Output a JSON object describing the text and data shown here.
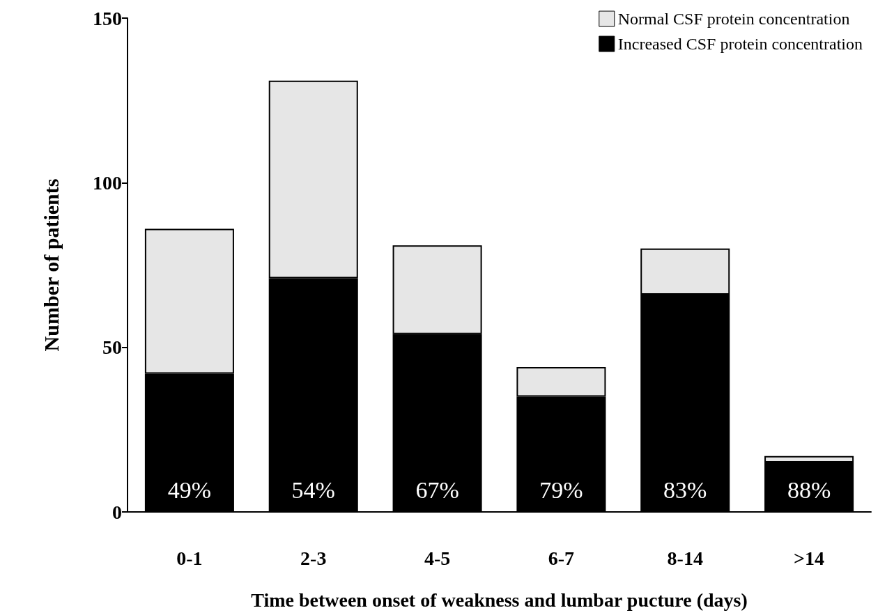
{
  "chart_data": {
    "type": "bar",
    "stacked": true,
    "xlabel": "Time between onset of weakness and lumbar pucture (days)",
    "ylabel": "Number of patients",
    "categories": [
      "0-1",
      "2-3",
      "4-5",
      "6-7",
      "8-14",
      ">14"
    ],
    "series": [
      {
        "name": "Increased CSF protein concentration",
        "color": "#000000",
        "values": [
          42,
          71,
          54,
          35,
          66,
          15
        ]
      },
      {
        "name": "Normal CSF protein concentration",
        "color": "#e6e6e6",
        "values": [
          44,
          60,
          27,
          9,
          14,
          2
        ]
      }
    ],
    "annotations": [
      "49%",
      "54%",
      "67%",
      "79%",
      "83%",
      "88%"
    ],
    "ylim": [
      0,
      150
    ],
    "yticks": [
      0,
      50,
      100,
      150
    ],
    "grid": false,
    "legend": "top right"
  }
}
